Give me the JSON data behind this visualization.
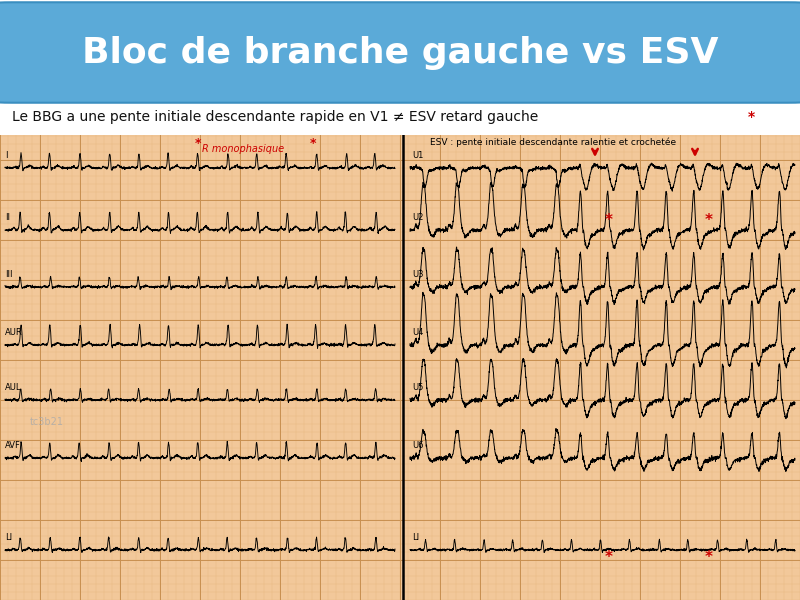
{
  "title": "Bloc de branche gauche vs ESV",
  "title_bg_color": "#5BAAD8",
  "title_text_color": "#FFFFFF",
  "subtitle": "Le BBG a une pente initiale descendante rapide en V1 ≠ ESV retard gauche",
  "subtitle_star": "*",
  "subtitle_color": "#111111",
  "ecg_bg_color": "#F2C89A",
  "ecg_grid_minor_color": "#E8B880",
  "ecg_grid_major_color": "#C89050",
  "annotation_r_mono": "R monophasique",
  "annotation_esv": "ESV : pente initiale descendante ralentie et crochetée",
  "watermark": "tc3b21",
  "red_color": "#CC0000",
  "white_bg": "#FFFFFF"
}
